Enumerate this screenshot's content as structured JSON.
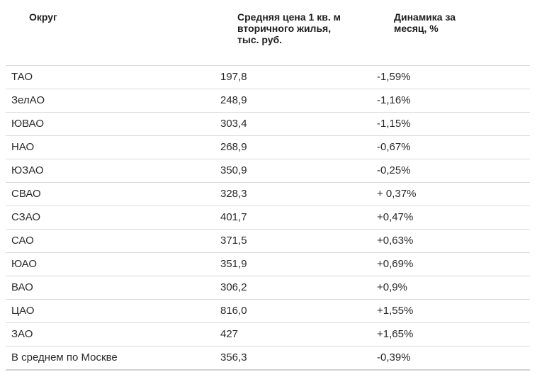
{
  "table": {
    "headers": [
      "Округ",
      "Средняя цена 1 кв. м вторичного жилья, тыс. руб.",
      "Динамика за месяц, %"
    ],
    "rows": [
      {
        "district": "ТАО",
        "price": "197,8",
        "change": "-1,59%"
      },
      {
        "district": "ЗелАО",
        "price": "248,9",
        "change": "-1,16%"
      },
      {
        "district": "ЮВАО",
        "price": "303,4",
        "change": "-1,15%"
      },
      {
        "district": "НАО",
        "price": "268,9",
        "change": "-0,67%"
      },
      {
        "district": "ЮЗАО",
        "price": "350,9",
        "change": "-0,25%"
      },
      {
        "district": "СВАО",
        "price": "328,3",
        "change": "+ 0,37%"
      },
      {
        "district": "СЗАО",
        "price": "401,7",
        "change": "+0,47%"
      },
      {
        "district": "САО",
        "price": "371,5",
        "change": "+0,63%"
      },
      {
        "district": "ЮАО",
        "price": "351,9",
        "change": "+0,69%"
      },
      {
        "district": "ВАО",
        "price": "306,2",
        "change": "+0,9%"
      },
      {
        "district": "ЦАО",
        "price": "816,0",
        "change": "+1,55%"
      },
      {
        "district": "ЗАО",
        "price": "427",
        "change": "+1,65%"
      },
      {
        "district": "В среднем по Москве",
        "price": "356,3",
        "change": "-0,39%"
      }
    ]
  }
}
